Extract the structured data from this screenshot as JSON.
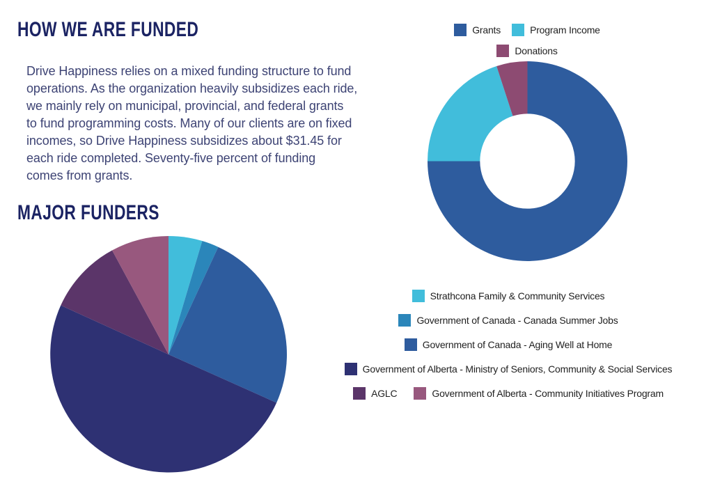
{
  "page": {
    "background_color": "#ffffff",
    "heading_color": "#1b2363",
    "body_text_color": "#3d4374",
    "legend_text_color": "#1f1f1f"
  },
  "headings": {
    "funded": "HOW WE ARE FUNDED",
    "major_funders": "MAJOR FUNDERS"
  },
  "paragraph": {
    "text": "Drive Happiness relies on a mixed funding structure to fund\noperations. As the organization heavily subsidizes each ride,\nwe mainly rely on municipal, provincial, and federal grants\nto fund programming costs. Many of our clients are on fixed\nincomes, so Drive Happiness subsidizes about $31.45 for\neach ride completed. Seventy-five percent of funding\ncomes from grants."
  },
  "chart_data": [
    {
      "id": "funding_donut",
      "type": "pie",
      "subtype": "donut",
      "title": "",
      "inner_radius_ratio": 0.475,
      "start_angle_deg": 0,
      "clockwise": true,
      "legend_position": "top-center",
      "legend_rows": [
        [
          0,
          1
        ],
        [
          2
        ]
      ],
      "series": [
        {
          "label": "Grants",
          "value_pct": 75,
          "color": "#2e5c9e"
        },
        {
          "label": "Program Income",
          "value_pct": 20,
          "color": "#41bddb"
        },
        {
          "label": "Donations",
          "value_pct": 5,
          "color": "#8d4b72"
        }
      ]
    },
    {
      "id": "major_funders_pie",
      "type": "pie",
      "subtype": "pie",
      "title": "MAJOR FUNDERS",
      "start_angle_deg": 0,
      "clockwise": true,
      "legend_position": "right-block",
      "legend_rows": [
        [
          0
        ],
        [
          1
        ],
        [
          2
        ],
        [
          3
        ],
        [
          4,
          5
        ]
      ],
      "series": [
        {
          "label": "Strathcona Family & Community Services",
          "value_pct": 4.6,
          "color": "#41bddb"
        },
        {
          "label": "Government of Canada - Canada Summer Jobs",
          "value_pct": 2.3,
          "color": "#2b86ba"
        },
        {
          "label": "Government of Canada - Aging Well at Home",
          "value_pct": 24.8,
          "color": "#2e5c9e"
        },
        {
          "label": "Government of Alberta - Ministry of Seniors, Community & Social Services",
          "value_pct": 50.1,
          "color": "#2e3173"
        },
        {
          "label": "AGLC",
          "value_pct": 10.3,
          "color": "#5b3569"
        },
        {
          "label": "Government of Alberta - Community Initiatives Program",
          "value_pct": 7.9,
          "color": "#98587e"
        }
      ]
    }
  ]
}
